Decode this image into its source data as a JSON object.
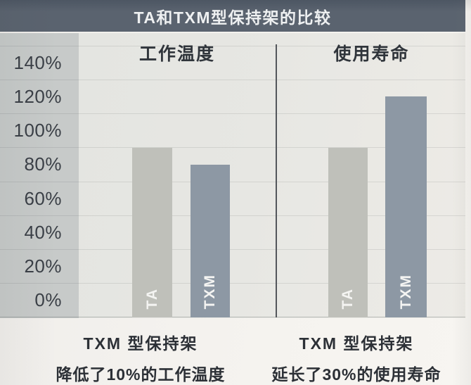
{
  "title": "TA和TXM型保持架的比较",
  "chart_data": {
    "type": "bar",
    "title": "TA和TXM型保持架的比较",
    "y_ticks": [
      "140%",
      "120%",
      "100%",
      "80%",
      "60%",
      "40%",
      "20%",
      "0%"
    ],
    "ylim": [
      0,
      160
    ],
    "grid": true,
    "legend_position": "none",
    "bar_colors": {
      "TA": "#bfc0ba",
      "TXM": "#8d98a4"
    },
    "panels": [
      {
        "title": "工作温度",
        "categories": [
          "TA",
          "TXM"
        ],
        "values": [
          100,
          90
        ],
        "caption_line1": "TXM 型保持架",
        "caption_line2": "降低了10%的工作温度"
      },
      {
        "title": "使用寿命",
        "categories": [
          "TA",
          "TXM"
        ],
        "values": [
          100,
          130
        ],
        "caption_line1": "TXM 型保持架",
        "caption_line2": "延长了30%的使用寿命"
      }
    ]
  },
  "colors": {
    "title_bar_bg": "#5a636f",
    "title_text": "#eef0f1",
    "axis_column_bg": "#c5c9ca",
    "plot_bg": "#e7e7e3",
    "ta_bar": "#bfc0ba",
    "txm_bar": "#8d98a4",
    "caption_text": "#2c3036"
  }
}
